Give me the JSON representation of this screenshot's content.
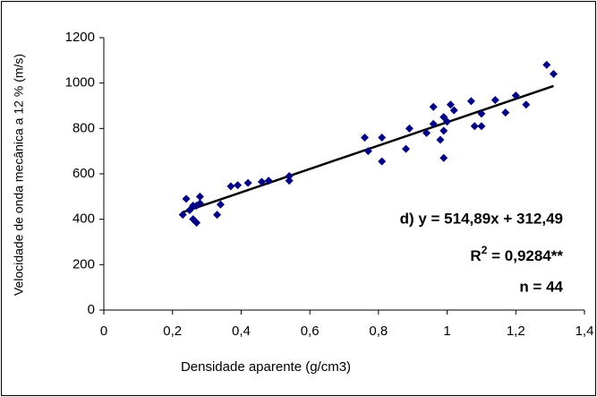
{
  "chart_data": {
    "type": "scatter",
    "xlabel": "Densidade aparente (g/cm3)",
    "ylabel": "Velocidade de onda mecânica a 12 % (m/s)",
    "xlim": [
      0,
      1.4
    ],
    "xticks": [
      0,
      {
        "value": 0.2,
        "label": "0,2"
      },
      {
        "value": 0.4,
        "label": "0,4"
      },
      {
        "value": 0.6,
        "label": "0,6"
      },
      {
        "value": 0.8,
        "label": "0,8"
      },
      1,
      {
        "value": 1.2,
        "label": "1,2"
      },
      {
        "value": 1.4,
        "label": "1,4"
      }
    ],
    "ylim": [
      0,
      1200
    ],
    "yticks": [
      0,
      200,
      400,
      600,
      800,
      1000,
      1200
    ],
    "color": "#000080",
    "x": [
      0.23,
      0.24,
      0.25,
      0.26,
      0.26,
      0.27,
      0.27,
      0.28,
      0.28,
      0.33,
      0.34,
      0.37,
      0.39,
      0.42,
      0.46,
      0.48,
      0.54,
      0.54,
      0.76,
      0.77,
      0.81,
      0.81,
      0.88,
      0.89,
      0.94,
      0.96,
      0.96,
      0.98,
      0.99,
      0.99,
      0.99,
      1.0,
      1.01,
      1.02,
      1.07,
      1.08,
      1.1,
      1.1,
      1.14,
      1.17,
      1.2,
      1.23,
      1.29,
      1.31
    ],
    "values": [
      420,
      490,
      440,
      460,
      400,
      385,
      460,
      500,
      470,
      420,
      465,
      545,
      550,
      560,
      565,
      570,
      590,
      570,
      760,
      700,
      760,
      655,
      710,
      800,
      780,
      820,
      895,
      750,
      790,
      670,
      850,
      830,
      905,
      880,
      920,
      810,
      810,
      865,
      925,
      870,
      945,
      905,
      1080,
      1040
    ],
    "trendline": {
      "color": "#000000",
      "x": [
        0.23,
        1.31
      ],
      "values": [
        431,
        987
      ]
    },
    "annotations": {
      "equation": "d) y = 514,89x + 312,49",
      "r2": {
        "base": "R",
        "sup": "2",
        "rest": " = 0,9284**"
      },
      "n": "n = 44"
    }
  }
}
